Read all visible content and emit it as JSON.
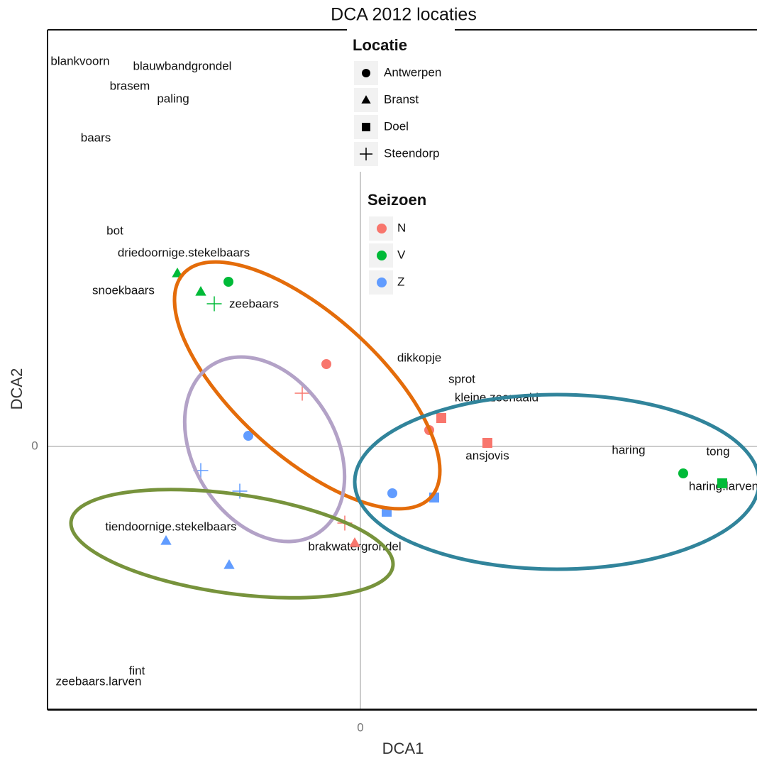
{
  "chart_data": {
    "type": "scatter",
    "title": "DCA 2012 locaties",
    "x_label": "DCA1",
    "y_label": "DCA2",
    "xlim": [
      -4.41,
      5.59
    ],
    "ylim": [
      -3.71,
      5.87
    ],
    "xticks": [
      0
    ],
    "yticks": [
      0
    ],
    "zero_lines": true,
    "shape_legend": {
      "title": "Locatie",
      "items": [
        {
          "name": "Antwerpen",
          "shape": "circle"
        },
        {
          "name": "Branst",
          "shape": "triangle"
        },
        {
          "name": "Doel",
          "shape": "square"
        },
        {
          "name": "Steendorp",
          "shape": "plus"
        }
      ]
    },
    "color_legend": {
      "title": "Seizoen",
      "items": [
        {
          "name": "N",
          "color": "#F8766D"
        },
        {
          "name": "V",
          "color": "#00BA38"
        },
        {
          "name": "Z",
          "color": "#619CFF"
        }
      ]
    },
    "series": [
      {
        "name": "Antwerpen",
        "shape": "circle",
        "x": [
          -1.86,
          -0.48,
          -1.58,
          0.97,
          0.45,
          4.55
        ],
        "values": [
          2.32,
          1.16,
          0.15,
          0.23,
          -0.66,
          -0.38
        ],
        "colors": [
          "#00BA38",
          "#F8766D",
          "#619CFF",
          "#F8766D",
          "#619CFF",
          "#00BA38"
        ]
      },
      {
        "name": "Branst",
        "shape": "triangle",
        "x": [
          -2.58,
          -2.25,
          -2.74,
          -1.85,
          -0.08
        ],
        "values": [
          2.44,
          2.18,
          -1.33,
          -1.67,
          -1.36
        ],
        "colors": [
          "#00BA38",
          "#00BA38",
          "#619CFF",
          "#619CFF",
          "#F8766D"
        ]
      },
      {
        "name": "Doel",
        "shape": "square",
        "x": [
          1.14,
          1.79,
          1.04,
          0.37,
          5.1
        ],
        "values": [
          0.4,
          0.05,
          -0.72,
          -0.92,
          -0.52
        ],
        "colors": [
          "#F8766D",
          "#F8766D",
          "#619CFF",
          "#619CFF",
          "#00BA38"
        ]
      },
      {
        "name": "Steendorp",
        "shape": "plus",
        "x": [
          -2.06,
          -0.82,
          -2.25,
          -1.7,
          -0.22
        ],
        "values": [
          2.01,
          0.75,
          -0.34,
          -0.63,
          -1.08
        ],
        "colors": [
          "#00BA38",
          "#F8766D",
          "#619CFF",
          "#619CFF",
          "#F8766D"
        ]
      }
    ],
    "labels": [
      {
        "text": "blankvoorn",
        "x": -3.95,
        "y": 5.42
      },
      {
        "text": "blauwbandgrondel",
        "x": -2.51,
        "y": 5.35
      },
      {
        "text": "brasem",
        "x": -3.25,
        "y": 5.07
      },
      {
        "text": "paling",
        "x": -2.64,
        "y": 4.89
      },
      {
        "text": "baars",
        "x": -3.73,
        "y": 4.34
      },
      {
        "text": "bot",
        "x": -3.46,
        "y": 3.03
      },
      {
        "text": "driedoornige.stekelbaars",
        "x": -2.49,
        "y": 2.72
      },
      {
        "text": "snoekbaars",
        "x": -3.34,
        "y": 2.19
      },
      {
        "text": "zeebaars",
        "x": -1.5,
        "y": 2.0
      },
      {
        "text": "dikkopje",
        "x": 0.83,
        "y": 1.24
      },
      {
        "text": "sprot",
        "x": 1.43,
        "y": 0.94
      },
      {
        "text": "kleine.zeenaald",
        "x": 1.92,
        "y": 0.68
      },
      {
        "text": "ansjovis",
        "x": 1.79,
        "y": -0.14
      },
      {
        "text": "haring",
        "x": 3.78,
        "y": -0.06
      },
      {
        "text": "tong",
        "x": 5.04,
        "y": -0.08
      },
      {
        "text": "haring.larven",
        "x": 5.12,
        "y": -0.57
      },
      {
        "text": "tiendoornige.stekelbaars",
        "x": -2.67,
        "y": -1.14
      },
      {
        "text": "brakwatergrondel",
        "x": -0.08,
        "y": -1.42
      },
      {
        "text": "fint",
        "x": -3.15,
        "y": -3.17
      },
      {
        "text": "zeebaars.larven",
        "x": -3.69,
        "y": -3.32
      }
    ]
  }
}
